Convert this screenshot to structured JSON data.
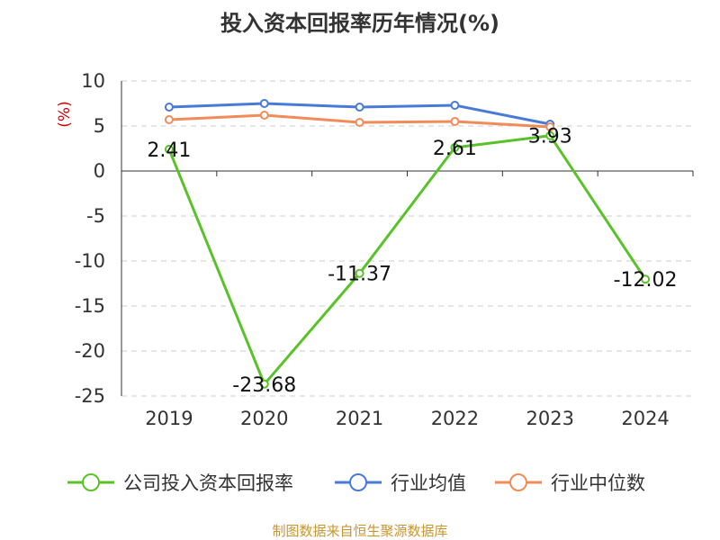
{
  "chart_data": {
    "type": "line",
    "title": "投入资本回报率历年情况(%)",
    "ylabel": "(%)",
    "categories": [
      "2019",
      "2020",
      "2021",
      "2022",
      "2023",
      "2024"
    ],
    "ylim": [
      -25,
      10
    ],
    "yticks": [
      10,
      5,
      0,
      -5,
      -10,
      -15,
      -20,
      -25
    ],
    "grid": true,
    "legend_position": "bottom",
    "series": [
      {
        "name": "公司投入资本回报率",
        "color": "#5ac229",
        "values": [
          2.41,
          -23.68,
          -11.37,
          2.61,
          3.93,
          -12.02
        ],
        "labels": [
          "2.41",
          "-23.68",
          "-11.37",
          "2.61",
          "3.93",
          "-12.02"
        ]
      },
      {
        "name": "行业均值",
        "color": "#4a7ad7",
        "values": [
          7.1,
          7.5,
          7.1,
          7.3,
          5.2,
          null
        ]
      },
      {
        "name": "行业中位数",
        "color": "#f28b5a",
        "values": [
          5.7,
          6.2,
          5.4,
          5.5,
          4.9,
          null
        ]
      }
    ]
  },
  "source": "制图数据来自恒生聚源数据库"
}
